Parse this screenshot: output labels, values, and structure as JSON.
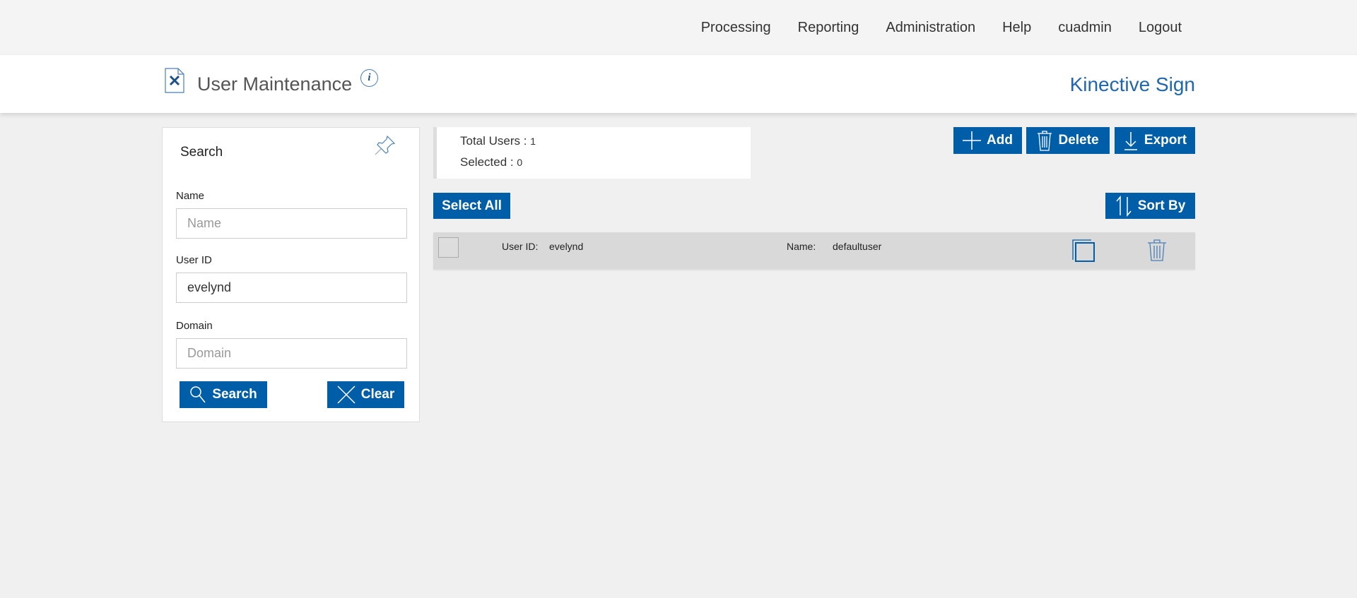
{
  "nav": {
    "items": [
      "Processing",
      "Reporting",
      "Administration",
      "Help",
      "cuadmin",
      "Logout"
    ]
  },
  "header": {
    "title": "User Maintenance",
    "info_icon": "i",
    "brand": "Kinective Sign"
  },
  "search": {
    "title": "Search",
    "name_label": "Name",
    "name_placeholder": "Name",
    "name_value": "",
    "userid_label": "User ID",
    "userid_value": "evelynd",
    "domain_label": "Domain",
    "domain_placeholder": "Domain",
    "domain_value": "",
    "search_button": "Search",
    "clear_button": "Clear"
  },
  "stats": {
    "total_label": "Total Users :",
    "total_value": "1",
    "selected_label": "Selected :",
    "selected_value": "0"
  },
  "toolbar": {
    "add": "Add",
    "delete": "Delete",
    "export": "Export",
    "select_all": "Select All",
    "sort_by": "Sort By"
  },
  "rows": [
    {
      "userid_label": "User ID:",
      "userid": "evelynd",
      "name_label": "Name:",
      "name": "defaultuser",
      "selected": false
    }
  ],
  "colors": {
    "accent": "#005ea8",
    "brand": "#1f66ad"
  }
}
